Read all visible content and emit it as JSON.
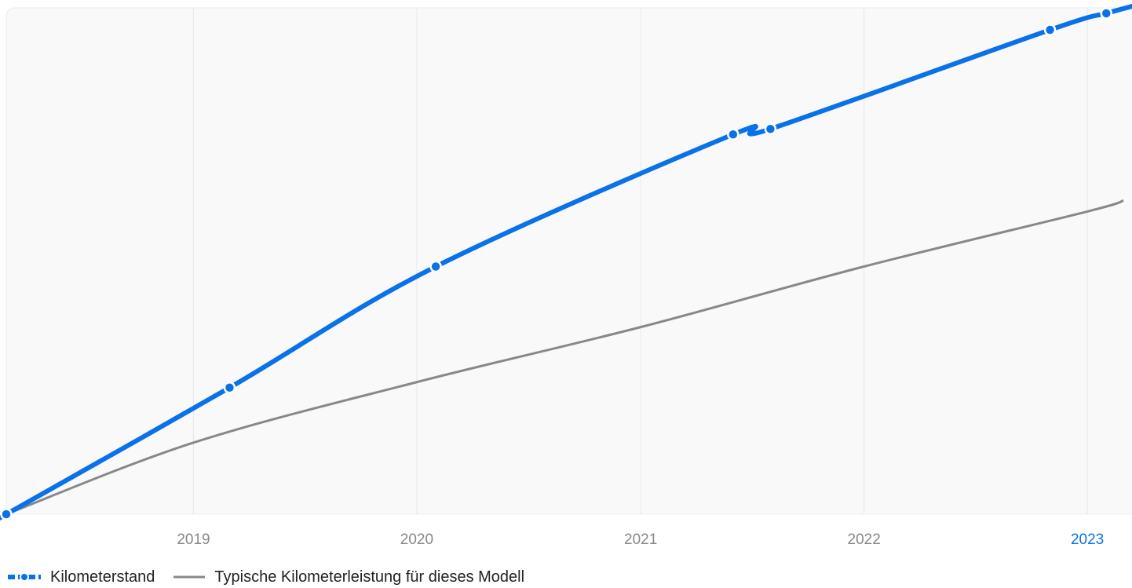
{
  "chart_data": {
    "type": "line",
    "title": "",
    "xlabel": "",
    "ylabel": "",
    "x_ticks": [
      "2019",
      "2020",
      "2021",
      "2022",
      "2023"
    ],
    "highlight_tick": "2023",
    "grid": "vertical",
    "legend_position": "bottom-left",
    "series": [
      {
        "name": "Kilometerstand",
        "style": "thick smooth line with dot markers",
        "color": "#0a72e8",
        "x": [
          "2018-03",
          "2019-03",
          "2020-02",
          "2021-06",
          "2021-08",
          "2022-11",
          "2023-02"
        ],
        "y": [
          0,
          23,
          45,
          69,
          70,
          88,
          91
        ]
      },
      {
        "name": "Typische Kilometerleistung für dieses Modell",
        "style": "thin line",
        "color": "#888888",
        "x": [
          "2018-03",
          "2019-01",
          "2020-01",
          "2021-01",
          "2022-01",
          "2023-01",
          "2023-03"
        ],
        "y": [
          0,
          13,
          24,
          34,
          45,
          55,
          57
        ]
      }
    ]
  },
  "colors": {
    "plot_background": "#f9f9fa",
    "grid": "#e8e8ea",
    "tick_text": "#888888",
    "highlight_tick": "#0a72e8"
  }
}
